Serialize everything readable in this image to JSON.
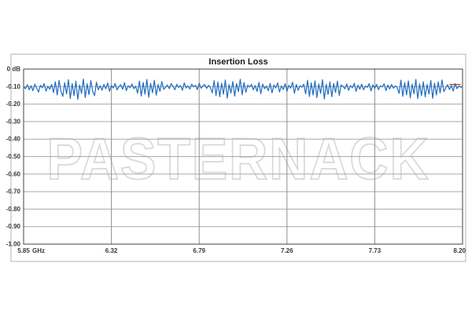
{
  "style": {
    "trace_color": "#1f6cc0",
    "h_grid_color": "#a9a9a9",
    "v_grid_color": "#8f8f8f",
    "plot_border_color": "#404040",
    "outer_border_color": "#b3b3b3",
    "watermark_stroke_color": "#d8d8d8",
    "watermark_fill_color": "#ffffff",
    "label_color": "#3a3a3a",
    "marker_color": "#d03a2b",
    "background_color": "#ffffff"
  },
  "chart_data": {
    "type": "line",
    "title": "Insertion Loss",
    "watermark": "PASTERNACK",
    "x_unit_label": "GHz",
    "xlabel": "",
    "ylabel": "",
    "xlim": [
      5.85,
      8.2
    ],
    "ylim": [
      -1.0,
      0.0
    ],
    "grid": true,
    "x_tick_values": [
      5.85,
      6.32,
      6.79,
      7.26,
      7.73,
      8.2
    ],
    "x_tick_labels": [
      "5.85",
      "6.32",
      "6.79",
      "7.26",
      "7.73",
      "8.20"
    ],
    "y_tick_values": [
      0,
      -0.1,
      -0.2,
      -0.3,
      -0.4,
      -0.5,
      -0.6,
      -0.7,
      -0.8,
      -0.9,
      -1.0
    ],
    "y_tick_labels": [
      "0 dB",
      "-0.10",
      "-0.20",
      "-0.30",
      "-0.40",
      "-0.50",
      "-0.60",
      "-0.70",
      "-0.80",
      "-0.90",
      "-1.00"
    ],
    "series": [
      {
        "name": "Insertion Loss",
        "color": "#1f6cc0",
        "x_start": 5.85,
        "x_step": 0.01,
        "values": [
          -0.098,
          -0.112,
          -0.089,
          -0.118,
          -0.095,
          -0.124,
          -0.086,
          -0.109,
          -0.131,
          -0.092,
          -0.107,
          -0.083,
          -0.126,
          -0.098,
          -0.115,
          -0.088,
          -0.134,
          -0.072,
          -0.148,
          -0.065,
          -0.127,
          -0.156,
          -0.078,
          -0.142,
          -0.061,
          -0.168,
          -0.083,
          -0.151,
          -0.069,
          -0.173,
          -0.091,
          -0.139,
          -0.057,
          -0.162,
          -0.084,
          -0.146,
          -0.066,
          -0.128,
          -0.152,
          -0.075,
          -0.118,
          -0.096,
          -0.121,
          -0.087,
          -0.113,
          -0.079,
          -0.127,
          -0.094,
          -0.108,
          -0.082,
          -0.119,
          -0.101,
          -0.089,
          -0.116,
          -0.078,
          -0.123,
          -0.095,
          -0.107,
          -0.085,
          -0.112,
          -0.098,
          -0.138,
          -0.068,
          -0.154,
          -0.076,
          -0.143,
          -0.059,
          -0.161,
          -0.082,
          -0.135,
          -0.064,
          -0.149,
          -0.088,
          -0.127,
          -0.071,
          -0.116,
          -0.104,
          -0.091,
          -0.112,
          -0.083,
          -0.099,
          -0.118,
          -0.087,
          -0.105,
          -0.094,
          -0.121,
          -0.079,
          -0.108,
          -0.096,
          -0.114,
          -0.086,
          -0.102,
          -0.092,
          -0.117,
          -0.081,
          -0.109,
          -0.097,
          -0.088,
          -0.111,
          -0.093,
          -0.106,
          -0.136,
          -0.066,
          -0.152,
          -0.074,
          -0.158,
          -0.081,
          -0.144,
          -0.062,
          -0.166,
          -0.089,
          -0.137,
          -0.071,
          -0.155,
          -0.083,
          -0.129,
          -0.058,
          -0.147,
          -0.077,
          -0.133,
          -0.092,
          -0.103,
          -0.087,
          -0.119,
          -0.094,
          -0.128,
          -0.076,
          -0.141,
          -0.085,
          -0.112,
          -0.097,
          -0.124,
          -0.082,
          -0.136,
          -0.091,
          -0.108,
          -0.079,
          -0.131,
          -0.096,
          -0.117,
          -0.084,
          -0.126,
          -0.093,
          -0.109,
          -0.075,
          -0.138,
          -0.088,
          -0.121,
          -0.095,
          -0.104,
          -0.086,
          -0.142,
          -0.064,
          -0.157,
          -0.079,
          -0.148,
          -0.067,
          -0.163,
          -0.085,
          -0.139,
          -0.061,
          -0.171,
          -0.087,
          -0.145,
          -0.073,
          -0.158,
          -0.082,
          -0.134,
          -0.069,
          -0.151,
          -0.091,
          -0.098,
          -0.113,
          -0.085,
          -0.122,
          -0.094,
          -0.107,
          -0.081,
          -0.127,
          -0.092,
          -0.115,
          -0.086,
          -0.119,
          -0.097,
          -0.104,
          -0.083,
          -0.125,
          -0.09,
          -0.111,
          -0.087,
          -0.118,
          -0.095,
          -0.102,
          -0.084,
          -0.123,
          -0.091,
          -0.114,
          -0.088,
          -0.109,
          -0.096,
          -0.105,
          -0.139,
          -0.063,
          -0.156,
          -0.077,
          -0.147,
          -0.068,
          -0.164,
          -0.086,
          -0.141,
          -0.059,
          -0.169,
          -0.084,
          -0.152,
          -0.072,
          -0.159,
          -0.088,
          -0.143,
          -0.065,
          -0.167,
          -0.081,
          -0.148,
          -0.074,
          -0.136,
          -0.062,
          -0.129,
          -0.108,
          -0.089,
          -0.117,
          -0.095,
          -0.126,
          -0.083,
          -0.112,
          -0.097,
          -0.104,
          -0.099
        ]
      }
    ],
    "reference_marker": {
      "color": "#d03a2b",
      "x_start": 8.13,
      "x_end": 8.19,
      "y": -0.088
    }
  }
}
